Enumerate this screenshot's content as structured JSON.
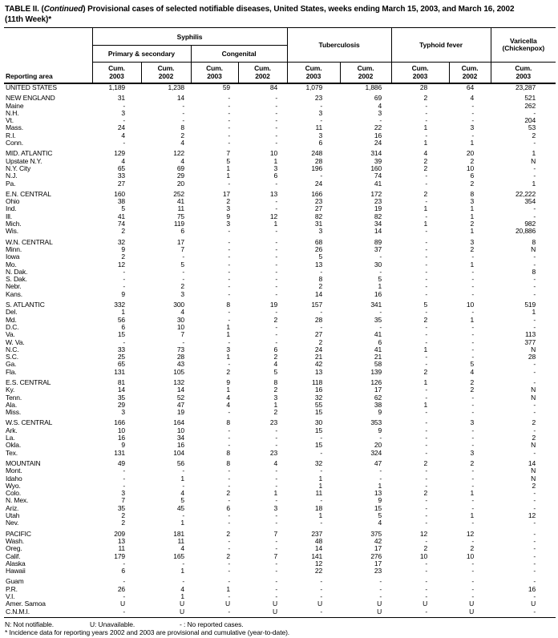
{
  "title": {
    "prefix": "TABLE II. (",
    "continued": "Continued",
    "rest": ") Provisional cases of selected notifiable diseases, United States, weeks ending March 15, 2003, and March 16, 2002",
    "line2": "(11th Week)*"
  },
  "table": {
    "header": {
      "reporting_area": "Reporting area",
      "syphilis": "Syphilis",
      "primary_secondary": "Primary & secondary",
      "congenital": "Congenital",
      "tuberculosis": "Tuberculosis",
      "typhoid_fever": "Typhoid fever",
      "varicella_line1": "Varicella",
      "varicella_line2": "(Chickenpox)",
      "cum": "Cum.",
      "years": [
        "2003",
        "2002",
        "2003",
        "2002",
        "2003",
        "2002",
        "2003",
        "2002",
        "2003"
      ]
    },
    "rows": [
      {
        "area": "UNITED STATES",
        "section_start": false,
        "values": [
          "1,189",
          "1,238",
          "59",
          "84",
          "1,079",
          "1,886",
          "28",
          "64",
          "23,287"
        ]
      },
      {
        "area": "NEW ENGLAND",
        "section_start": true,
        "values": [
          "31",
          "14",
          "-",
          "-",
          "23",
          "69",
          "2",
          "4",
          "521"
        ]
      },
      {
        "area": "Maine",
        "section_start": false,
        "values": [
          "-",
          "-",
          "-",
          "-",
          "-",
          "4",
          "-",
          "-",
          "262"
        ]
      },
      {
        "area": "N.H.",
        "section_start": false,
        "values": [
          "3",
          "-",
          "-",
          "-",
          "3",
          "3",
          "-",
          "-",
          "-"
        ]
      },
      {
        "area": "Vt.",
        "section_start": false,
        "values": [
          "-",
          "-",
          "-",
          "-",
          "-",
          "-",
          "-",
          "-",
          "204"
        ]
      },
      {
        "area": "Mass.",
        "section_start": false,
        "values": [
          "24",
          "8",
          "-",
          "-",
          "11",
          "22",
          "1",
          "3",
          "53"
        ]
      },
      {
        "area": "R.I.",
        "section_start": false,
        "values": [
          "4",
          "2",
          "-",
          "-",
          "3",
          "16",
          "-",
          "-",
          "2"
        ]
      },
      {
        "area": "Conn.",
        "section_start": false,
        "values": [
          "-",
          "4",
          "-",
          "-",
          "6",
          "24",
          "1",
          "1",
          "-"
        ]
      },
      {
        "area": "MID. ATLANTIC",
        "section_start": true,
        "values": [
          "129",
          "122",
          "7",
          "10",
          "248",
          "314",
          "4",
          "20",
          "1"
        ]
      },
      {
        "area": "Upstate N.Y.",
        "section_start": false,
        "values": [
          "4",
          "4",
          "5",
          "1",
          "28",
          "39",
          "2",
          "2",
          "N"
        ]
      },
      {
        "area": "N.Y. City",
        "section_start": false,
        "values": [
          "65",
          "69",
          "1",
          "3",
          "196",
          "160",
          "2",
          "10",
          "-"
        ]
      },
      {
        "area": "N.J.",
        "section_start": false,
        "values": [
          "33",
          "29",
          "1",
          "6",
          "-",
          "74",
          "-",
          "6",
          "-"
        ]
      },
      {
        "area": "Pa.",
        "section_start": false,
        "values": [
          "27",
          "20",
          "-",
          "-",
          "24",
          "41",
          "-",
          "2",
          "1"
        ]
      },
      {
        "area": "E.N. CENTRAL",
        "section_start": true,
        "values": [
          "160",
          "252",
          "17",
          "13",
          "166",
          "172",
          "2",
          "8",
          "22,222"
        ]
      },
      {
        "area": "Ohio",
        "section_start": false,
        "values": [
          "38",
          "41",
          "2",
          "-",
          "23",
          "23",
          "-",
          "3",
          "354"
        ]
      },
      {
        "area": "Ind.",
        "section_start": false,
        "values": [
          "5",
          "11",
          "3",
          "-",
          "27",
          "19",
          "1",
          "1",
          "-"
        ]
      },
      {
        "area": "Ill.",
        "section_start": false,
        "values": [
          "41",
          "75",
          "9",
          "12",
          "82",
          "82",
          "-",
          "1",
          "-"
        ]
      },
      {
        "area": "Mich.",
        "section_start": false,
        "values": [
          "74",
          "119",
          "3",
          "1",
          "31",
          "34",
          "1",
          "2",
          "982"
        ]
      },
      {
        "area": "Wis.",
        "section_start": false,
        "values": [
          "2",
          "6",
          "-",
          "-",
          "3",
          "14",
          "-",
          "1",
          "20,886"
        ]
      },
      {
        "area": "W.N. CENTRAL",
        "section_start": true,
        "values": [
          "32",
          "17",
          "-",
          "-",
          "68",
          "89",
          "-",
          "3",
          "8"
        ]
      },
      {
        "area": "Minn.",
        "section_start": false,
        "values": [
          "9",
          "7",
          "-",
          "-",
          "26",
          "37",
          "-",
          "2",
          "N"
        ]
      },
      {
        "area": "Iowa",
        "section_start": false,
        "values": [
          "2",
          "-",
          "-",
          "-",
          "5",
          "-",
          "-",
          "-",
          "-"
        ]
      },
      {
        "area": "Mo.",
        "section_start": false,
        "values": [
          "12",
          "5",
          "-",
          "-",
          "13",
          "30",
          "-",
          "1",
          "-"
        ]
      },
      {
        "area": "N. Dak.",
        "section_start": false,
        "values": [
          "-",
          "-",
          "-",
          "-",
          "-",
          "-",
          "-",
          "-",
          "8"
        ]
      },
      {
        "area": "S. Dak.",
        "section_start": false,
        "values": [
          "-",
          "-",
          "-",
          "-",
          "8",
          "5",
          "-",
          "-",
          "-"
        ]
      },
      {
        "area": "Nebr.",
        "section_start": false,
        "values": [
          "-",
          "2",
          "-",
          "-",
          "2",
          "1",
          "-",
          "-",
          "-"
        ]
      },
      {
        "area": "Kans.",
        "section_start": false,
        "values": [
          "9",
          "3",
          "-",
          "-",
          "14",
          "16",
          "-",
          "-",
          "-"
        ]
      },
      {
        "area": "S. ATLANTIC",
        "section_start": true,
        "values": [
          "332",
          "300",
          "8",
          "19",
          "157",
          "341",
          "5",
          "10",
          "519"
        ]
      },
      {
        "area": "Del.",
        "section_start": false,
        "values": [
          "1",
          "4",
          "-",
          "-",
          "-",
          "-",
          "-",
          "-",
          "1"
        ]
      },
      {
        "area": "Md.",
        "section_start": false,
        "values": [
          "56",
          "30",
          "-",
          "2",
          "28",
          "35",
          "2",
          "1",
          "-"
        ]
      },
      {
        "area": "D.C.",
        "section_start": false,
        "values": [
          "6",
          "10",
          "1",
          "-",
          "-",
          "-",
          "-",
          "-",
          "-"
        ]
      },
      {
        "area": "Va.",
        "section_start": false,
        "values": [
          "15",
          "7",
          "1",
          "-",
          "27",
          "41",
          "-",
          "-",
          "113"
        ]
      },
      {
        "area": "W. Va.",
        "section_start": false,
        "values": [
          "-",
          "-",
          "-",
          "-",
          "2",
          "6",
          "-",
          "-",
          "377"
        ]
      },
      {
        "area": "N.C.",
        "section_start": false,
        "values": [
          "33",
          "73",
          "3",
          "6",
          "24",
          "41",
          "1",
          "-",
          "N"
        ]
      },
      {
        "area": "S.C.",
        "section_start": false,
        "values": [
          "25",
          "28",
          "1",
          "2",
          "21",
          "21",
          "-",
          "-",
          "28"
        ]
      },
      {
        "area": "Ga.",
        "section_start": false,
        "values": [
          "65",
          "43",
          "-",
          "4",
          "42",
          "58",
          "-",
          "5",
          "-"
        ]
      },
      {
        "area": "Fla.",
        "section_start": false,
        "values": [
          "131",
          "105",
          "2",
          "5",
          "13",
          "139",
          "2",
          "4",
          "-"
        ]
      },
      {
        "area": "E.S. CENTRAL",
        "section_start": true,
        "values": [
          "81",
          "132",
          "9",
          "8",
          "118",
          "126",
          "1",
          "2",
          "-"
        ]
      },
      {
        "area": "Ky.",
        "section_start": false,
        "values": [
          "14",
          "14",
          "1",
          "2",
          "16",
          "17",
          "-",
          "2",
          "N"
        ]
      },
      {
        "area": "Tenn.",
        "section_start": false,
        "values": [
          "35",
          "52",
          "4",
          "3",
          "32",
          "62",
          "-",
          "-",
          "N"
        ]
      },
      {
        "area": "Ala.",
        "section_start": false,
        "values": [
          "29",
          "47",
          "4",
          "1",
          "55",
          "38",
          "1",
          "-",
          "-"
        ]
      },
      {
        "area": "Miss.",
        "section_start": false,
        "values": [
          "3",
          "19",
          "-",
          "2",
          "15",
          "9",
          "-",
          "-",
          "-"
        ]
      },
      {
        "area": "W.S. CENTRAL",
        "section_start": true,
        "values": [
          "166",
          "164",
          "8",
          "23",
          "30",
          "353",
          "-",
          "3",
          "2"
        ]
      },
      {
        "area": "Ark.",
        "section_start": false,
        "values": [
          "10",
          "10",
          "-",
          "-",
          "15",
          "9",
          "-",
          "-",
          "-"
        ]
      },
      {
        "area": "La.",
        "section_start": false,
        "values": [
          "16",
          "34",
          "-",
          "-",
          "-",
          "-",
          "-",
          "-",
          "2"
        ]
      },
      {
        "area": "Okla.",
        "section_start": false,
        "values": [
          "9",
          "16",
          "-",
          "-",
          "15",
          "20",
          "-",
          "-",
          "N"
        ]
      },
      {
        "area": "Tex.",
        "section_start": false,
        "values": [
          "131",
          "104",
          "8",
          "23",
          "-",
          "324",
          "-",
          "3",
          "-"
        ]
      },
      {
        "area": "MOUNTAIN",
        "section_start": true,
        "values": [
          "49",
          "56",
          "8",
          "4",
          "32",
          "47",
          "2",
          "2",
          "14"
        ]
      },
      {
        "area": "Mont.",
        "section_start": false,
        "values": [
          "-",
          "-",
          "-",
          "-",
          "-",
          "-",
          "-",
          "-",
          "N"
        ]
      },
      {
        "area": "Idaho",
        "section_start": false,
        "values": [
          "-",
          "1",
          "-",
          "-",
          "1",
          "-",
          "-",
          "-",
          "N"
        ]
      },
      {
        "area": "Wyo.",
        "section_start": false,
        "values": [
          "-",
          "-",
          "-",
          "-",
          "1",
          "1",
          "-",
          "-",
          "2"
        ]
      },
      {
        "area": "Colo.",
        "section_start": false,
        "values": [
          "3",
          "4",
          "2",
          "1",
          "11",
          "13",
          "2",
          "1",
          "-"
        ]
      },
      {
        "area": "N. Mex.",
        "section_start": false,
        "values": [
          "7",
          "5",
          "-",
          "-",
          "-",
          "9",
          "-",
          "-",
          "-"
        ]
      },
      {
        "area": "Ariz.",
        "section_start": false,
        "values": [
          "35",
          "45",
          "6",
          "3",
          "18",
          "15",
          "-",
          "-",
          "-"
        ]
      },
      {
        "area": "Utah",
        "section_start": false,
        "values": [
          "2",
          "-",
          "-",
          "-",
          "1",
          "5",
          "-",
          "1",
          "12"
        ]
      },
      {
        "area": "Nev.",
        "section_start": false,
        "values": [
          "2",
          "1",
          "-",
          "-",
          "-",
          "4",
          "-",
          "-",
          "-"
        ]
      },
      {
        "area": "PACIFIC",
        "section_start": true,
        "values": [
          "209",
          "181",
          "2",
          "7",
          "237",
          "375",
          "12",
          "12",
          "-"
        ]
      },
      {
        "area": "Wash.",
        "section_start": false,
        "values": [
          "13",
          "11",
          "-",
          "-",
          "48",
          "42",
          "-",
          "-",
          "-"
        ]
      },
      {
        "area": "Oreg.",
        "section_start": false,
        "values": [
          "11",
          "4",
          "-",
          "-",
          "14",
          "17",
          "2",
          "2",
          "-"
        ]
      },
      {
        "area": "Calif.",
        "section_start": false,
        "values": [
          "179",
          "165",
          "2",
          "7",
          "141",
          "276",
          "10",
          "10",
          "-"
        ]
      },
      {
        "area": "Alaska",
        "section_start": false,
        "values": [
          "-",
          "-",
          "-",
          "-",
          "12",
          "17",
          "-",
          "-",
          "-"
        ]
      },
      {
        "area": "Hawaii",
        "section_start": false,
        "values": [
          "6",
          "1",
          "-",
          "-",
          "22",
          "23",
          "-",
          "-",
          "-"
        ]
      },
      {
        "area": "Guam",
        "section_start": true,
        "values": [
          "-",
          "-",
          "-",
          "-",
          "-",
          "-",
          "-",
          "-",
          "-"
        ]
      },
      {
        "area": "P.R.",
        "section_start": false,
        "values": [
          "26",
          "4",
          "1",
          "-",
          "-",
          "-",
          "-",
          "-",
          "16"
        ]
      },
      {
        "area": "V.I.",
        "section_start": false,
        "values": [
          "-",
          "1",
          "-",
          "-",
          "-",
          "-",
          "-",
          "-",
          "-"
        ]
      },
      {
        "area": "Amer. Samoa",
        "section_start": false,
        "values": [
          "U",
          "U",
          "U",
          "U",
          "U",
          "U",
          "U",
          "U",
          "U"
        ]
      },
      {
        "area": "C.N.M.I.",
        "section_start": false,
        "values": [
          "-",
          "U",
          "-",
          "U",
          "-",
          "U",
          "-",
          "U",
          "-"
        ]
      }
    ]
  },
  "footnotes": {
    "n": "N: Not notifiable.",
    "u": "U: Unavailable.",
    "dash": "- : No reported cases.",
    "asterisk": "* Incidence data for reporting years 2002 and 2003 are provisional and cumulative (year-to-date)."
  }
}
